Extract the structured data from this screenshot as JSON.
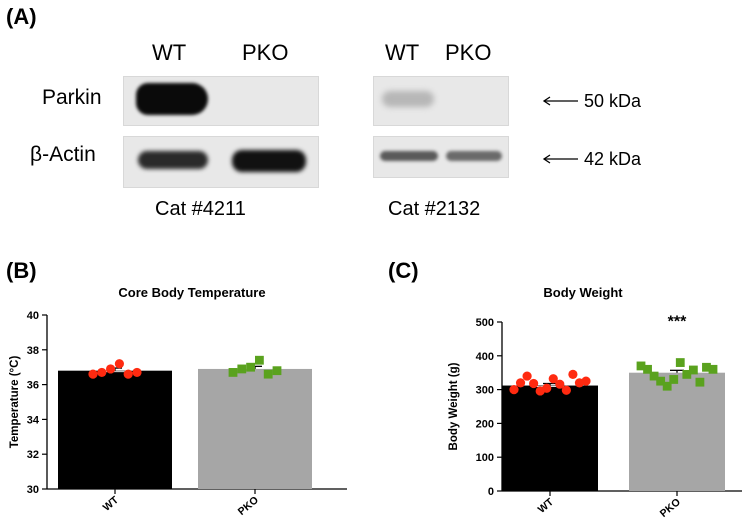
{
  "panel_a": {
    "label": "(A)",
    "blot1": {
      "lanes": [
        "WT",
        "PKO"
      ],
      "catalog": "Cat #4211"
    },
    "blot2": {
      "lanes": [
        "WT",
        "PKO"
      ],
      "catalog": "Cat #2132"
    },
    "rows": [
      "Parkin",
      "β-Actin"
    ],
    "markers": [
      "50 kDa",
      "42 kDa"
    ]
  },
  "chart_data": [
    {
      "panel_label": "(B)",
      "type": "bar",
      "title": "Core Body Temperature",
      "ylabel": "Temperature (°C)",
      "categories": [
        "WT",
        "PKO"
      ],
      "values": [
        36.8,
        36.9
      ],
      "sem": [
        0.15,
        0.15
      ],
      "ylim": [
        30,
        40
      ],
      "yticks": [
        30,
        32,
        34,
        36,
        38,
        40
      ],
      "bar_colors": [
        "#000000",
        "#a6a6a6"
      ],
      "points": [
        {
          "category": "WT",
          "marker": "circle",
          "color": "#ff2a10",
          "values": [
            36.6,
            36.7,
            36.9,
            37.2,
            36.6,
            36.7
          ]
        },
        {
          "category": "PKO",
          "marker": "square",
          "color": "#5aa21e",
          "values": [
            36.7,
            36.9,
            37.0,
            37.4,
            36.6,
            36.8
          ]
        }
      ]
    },
    {
      "panel_label": "(C)",
      "type": "bar",
      "title": "Body Weight",
      "ylabel": "Body Weight (g)",
      "categories": [
        "WT",
        "PKO"
      ],
      "values": [
        312,
        350
      ],
      "sem": [
        6,
        7
      ],
      "ylim": [
        0,
        500
      ],
      "yticks": [
        0,
        100,
        200,
        300,
        400,
        500
      ],
      "bar_colors": [
        "#000000",
        "#a6a6a6"
      ],
      "annotation": "***",
      "points": [
        {
          "category": "WT",
          "marker": "circle",
          "color": "#ff2a10",
          "values": [
            300,
            320,
            340,
            318,
            296,
            304,
            332,
            316,
            298,
            345,
            320,
            325
          ]
        },
        {
          "category": "PKO",
          "marker": "square",
          "color": "#5aa21e",
          "values": [
            370,
            360,
            340,
            325,
            310,
            330,
            380,
            345,
            358,
            322,
            366,
            360
          ]
        }
      ]
    }
  ]
}
